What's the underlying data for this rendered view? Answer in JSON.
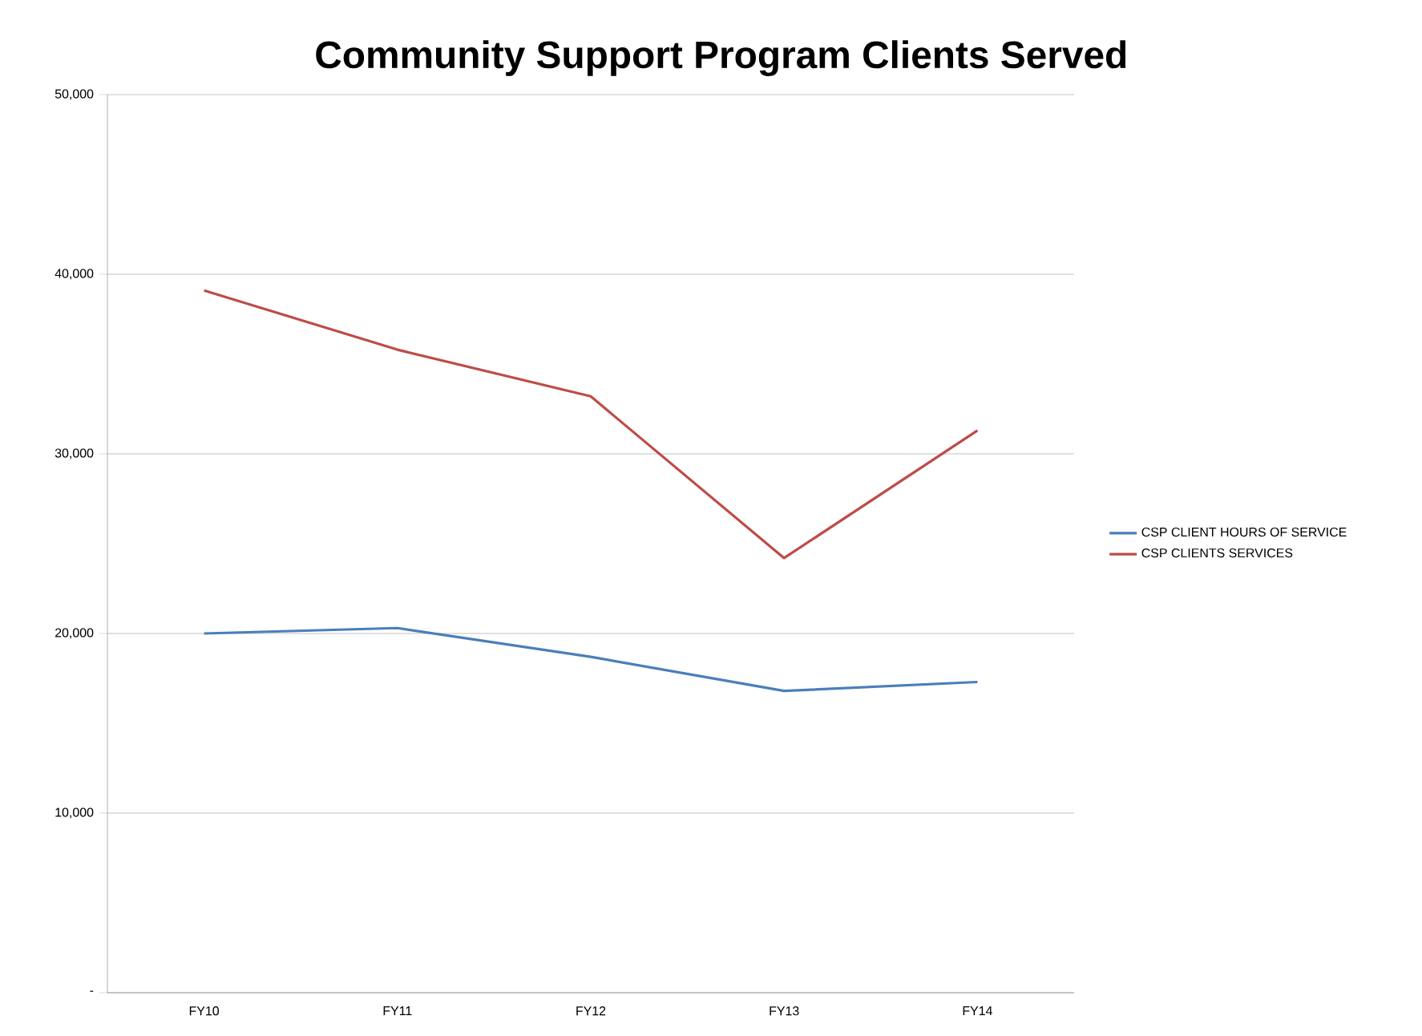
{
  "chart_data": {
    "type": "line",
    "title": "Community Support Program Clients Served",
    "categories": [
      "FY10",
      "FY11",
      "FY12",
      "FY13",
      "FY14"
    ],
    "series": [
      {
        "name": "CSP CLIENT HOURS OF SERVICE",
        "color": "#4a7ebb",
        "values": [
          20000,
          20300,
          18700,
          16800,
          17300
        ]
      },
      {
        "name": "CSP CLIENTS SERVICES",
        "color": "#be4b48",
        "values": [
          39100,
          35800,
          33200,
          24200,
          31300
        ]
      }
    ],
    "ylim": [
      0,
      50000
    ],
    "yticks": [
      {
        "value": 0,
        "label": "-"
      },
      {
        "value": 10000,
        "label": "10,000"
      },
      {
        "value": 20000,
        "label": "20,000"
      },
      {
        "value": 30000,
        "label": "30,000"
      },
      {
        "value": 40000,
        "label": "40,000"
      },
      {
        "value": 50000,
        "label": "50,000"
      }
    ],
    "grid": "y",
    "legend": "right",
    "marker": "none",
    "line_style": "solid"
  }
}
